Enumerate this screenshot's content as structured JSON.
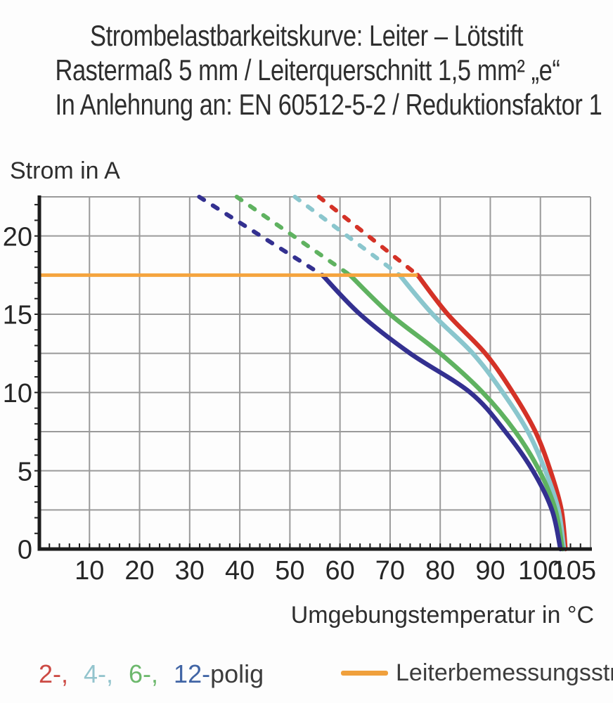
{
  "title": {
    "line1": "Strombelastbarkeitskurve: Leiter – Lötstift",
    "line2": "Rastermaß 5 mm / Leiterquerschnitt 1,5 mm² „e“",
    "line3": "In Anlehnung an: EN 60512-5-2 / Reduktionsfaktor 1"
  },
  "axes": {
    "y_label": "Strom in A",
    "x_label": "Umgebungstemperatur in °C"
  },
  "legend": {
    "poles": [
      {
        "label": "2-,",
        "color": "#cc4a44"
      },
      {
        "label": "4-,",
        "color": "#93c4cd"
      },
      {
        "label": "6-,",
        "color": "#6cb86c"
      },
      {
        "label": "12-",
        "color": "#4165a5"
      }
    ],
    "poles_suffix": "polig",
    "poles_suffix_color": "#3c3c3c",
    "rated": {
      "label": "Leiterbemessungsstrom",
      "color": "#f0a03c"
    }
  },
  "chart_data": {
    "type": "line",
    "title": "Strombelastbarkeitskurve: Leiter – Lötstift",
    "xlabel": "Umgebungstemperatur in °C",
    "ylabel": "Strom in A",
    "xlim": [
      0,
      110
    ],
    "ylim": [
      0,
      22.5
    ],
    "x_ticks": [
      10,
      20,
      30,
      40,
      50,
      60,
      70,
      80,
      90,
      100,
      105
    ],
    "y_ticks": [
      0,
      5,
      10,
      15,
      20
    ],
    "x_minor_step": 2,
    "y_minor_step": 1,
    "grid": {
      "x_step": 10,
      "y_step": 2.5,
      "color": "#9a9a9a",
      "on": true
    },
    "rated_line": {
      "label": "Leiterbemessungsstrom",
      "current_A": 17.5,
      "x_start": 0,
      "x_end": 75.5,
      "color": "#f5a43e"
    },
    "legend_position": "bottom",
    "series": [
      {
        "name": "2-polig",
        "color": "#d43227",
        "solid": [
          [
            75.5,
            17.5
          ],
          [
            81.5,
            15
          ],
          [
            89,
            12.5
          ],
          [
            94.5,
            10
          ],
          [
            99,
            7.5
          ],
          [
            102,
            5
          ],
          [
            104.2,
            2.5
          ],
          [
            105,
            0
          ]
        ],
        "dashed": [
          [
            55.8,
            22.5
          ],
          [
            75.5,
            17.5
          ]
        ]
      },
      {
        "name": "4-polig",
        "color": "#8ac6cd",
        "solid": [
          [
            71.9,
            17.5
          ],
          [
            78.5,
            15
          ],
          [
            86.5,
            12.5
          ],
          [
            92.5,
            10
          ],
          [
            97.5,
            7.5
          ],
          [
            101,
            5
          ],
          [
            103.6,
            2.5
          ],
          [
            104.7,
            0
          ]
        ],
        "dashed": [
          [
            51,
            22.5
          ],
          [
            71.9,
            17.5
          ]
        ]
      },
      {
        "name": "6-polig",
        "color": "#5fb260",
        "solid": [
          [
            62,
            17.5
          ],
          [
            70,
            15
          ],
          [
            80,
            12.5
          ],
          [
            88.5,
            10
          ],
          [
            95,
            7.5
          ],
          [
            99.8,
            5
          ],
          [
            103,
            2.5
          ],
          [
            104.4,
            0
          ]
        ],
        "dashed": [
          [
            39.4,
            22.5
          ],
          [
            62,
            17.5
          ]
        ]
      },
      {
        "name": "12-polig",
        "color": "#333090",
        "solid": [
          [
            56.5,
            17.5
          ],
          [
            64,
            15
          ],
          [
            74,
            12.5
          ],
          [
            86,
            10
          ],
          [
            93,
            7.5
          ],
          [
            98.5,
            5
          ],
          [
            102.3,
            2.5
          ],
          [
            104,
            0
          ]
        ],
        "dashed": [
          [
            31.9,
            22.5
          ],
          [
            56.5,
            17.5
          ]
        ]
      }
    ]
  },
  "style_colors": {
    "axis": "#1c1c1c",
    "grid": "#9a9a9a",
    "text": "#262626"
  }
}
